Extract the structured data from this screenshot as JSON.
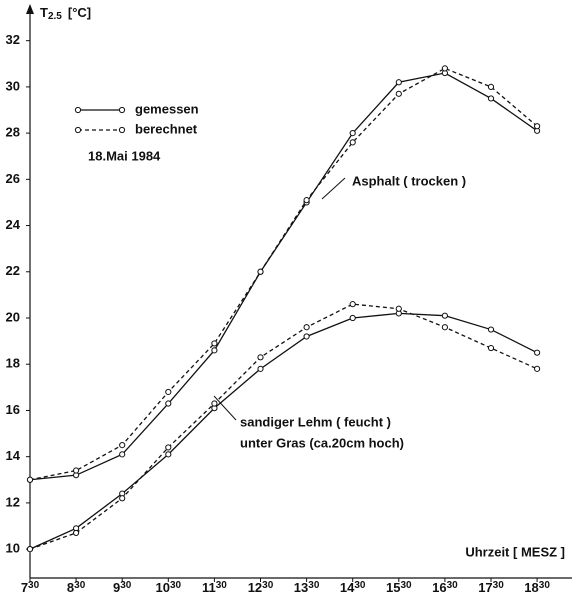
{
  "chart_data": {
    "type": "line",
    "y_label": {
      "symbol": "T",
      "subscript": "2.5",
      "unit": "[°C]"
    },
    "x_label": "Uhrzeit [ MESZ ]",
    "subtitle": "18.Mai 1984",
    "categories": [
      {
        "hour": "7",
        "minute": "30"
      },
      {
        "hour": "8",
        "minute": "30"
      },
      {
        "hour": "9",
        "minute": "30"
      },
      {
        "hour": "10",
        "minute": "30"
      },
      {
        "hour": "11",
        "minute": "30"
      },
      {
        "hour": "12",
        "minute": "30"
      },
      {
        "hour": "13",
        "minute": "30"
      },
      {
        "hour": "14",
        "minute": "30"
      },
      {
        "hour": "15",
        "minute": "30"
      },
      {
        "hour": "16",
        "minute": "30"
      },
      {
        "hour": "17",
        "minute": "30"
      },
      {
        "hour": "18",
        "minute": "30"
      }
    ],
    "series": [
      {
        "name": "gemessen",
        "color": "#111111",
        "dashed": false,
        "values": [
          13.0,
          13.2,
          14.1,
          16.3,
          18.6,
          22.0,
          25.0,
          28.0,
          30.2,
          30.6,
          29.5,
          28.1
        ]
      },
      {
        "name": "berechnet",
        "color": "#111111",
        "dashed": true,
        "values": [
          13.0,
          13.4,
          14.5,
          16.8,
          18.9,
          22.0,
          25.1,
          27.6,
          29.7,
          30.8,
          30.0,
          28.3
        ]
      },
      {
        "name": "gemessen",
        "color": "#111111",
        "dashed": false,
        "values": [
          10.0,
          10.9,
          12.4,
          14.1,
          16.1,
          17.8,
          19.2,
          20.0,
          20.2,
          20.1,
          19.5,
          18.5
        ]
      },
      {
        "name": "berechnet",
        "color": "#111111",
        "dashed": true,
        "values": [
          10.0,
          10.7,
          12.2,
          14.4,
          16.3,
          18.3,
          19.6,
          20.6,
          20.4,
          19.6,
          18.7,
          17.8
        ]
      }
    ],
    "annotations": [
      {
        "lines": [
          "Asphalt ( trocken )"
        ]
      },
      {
        "lines": [
          "sandiger Lehm ( feucht )",
          "unter Gras (ca.20cm hoch)"
        ]
      }
    ],
    "ylim": [
      8.75,
      33.5
    ],
    "yticks": [
      10,
      12,
      14,
      16,
      18,
      20,
      22,
      24,
      26,
      28,
      30,
      32
    ],
    "grid": false
  }
}
